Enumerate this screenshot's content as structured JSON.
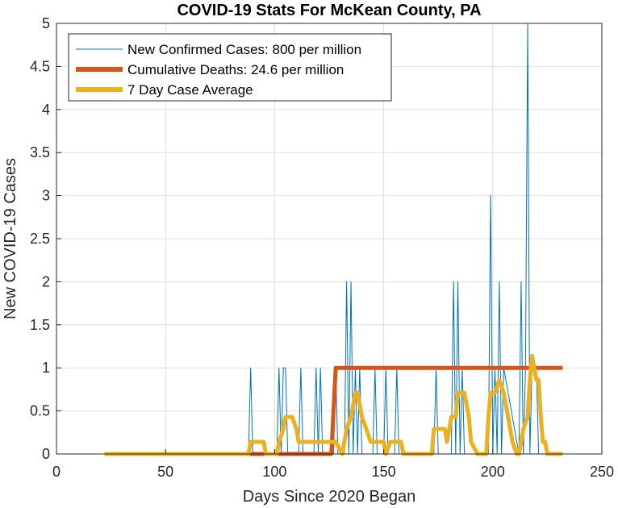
{
  "chart_data": {
    "type": "line",
    "title": "COVID-19 Stats For McKean County, PA",
    "xlabel": "Days Since 2020 Began",
    "ylabel": "New COVID-19 Cases",
    "xlim": [
      0,
      250
    ],
    "ylim": [
      0,
      5
    ],
    "xticks": [
      0,
      50,
      100,
      150,
      200,
      250
    ],
    "yticks": [
      0,
      0.5,
      1,
      1.5,
      2,
      2.5,
      3,
      3.5,
      4,
      4.5,
      5
    ],
    "xtick_labels": [
      "0",
      "50",
      "100",
      "150",
      "200",
      "250"
    ],
    "ytick_labels": [
      "0",
      "0.5",
      "1",
      "1.5",
      "2",
      "2.5",
      "3",
      "3.5",
      "4",
      "4.5",
      "5"
    ],
    "grid": true,
    "legend_position": "top-left",
    "series": [
      {
        "name": "New Confirmed Cases: 800 per million",
        "color": "#0072BD",
        "x": [
          22,
          88,
          89,
          90,
          101,
          102,
          103,
          104,
          105,
          106,
          111,
          112,
          113,
          118,
          119,
          120,
          121,
          122,
          127,
          128,
          129,
          132,
          133,
          134,
          135,
          136,
          137,
          138,
          139,
          140,
          145,
          146,
          147,
          150,
          151,
          152,
          155,
          156,
          157,
          173,
          174,
          175,
          181,
          182,
          183,
          184,
          185,
          186,
          187,
          198,
          199,
          200,
          201,
          202,
          203,
          204,
          205,
          212,
          213,
          214,
          215,
          216,
          217,
          218,
          219,
          220,
          221,
          232
        ],
        "y": [
          0,
          0,
          1,
          0,
          0,
          1,
          0,
          1,
          1,
          0,
          0,
          1,
          0,
          0,
          1,
          0,
          1,
          0,
          0,
          1,
          0,
          0,
          2,
          0,
          2,
          0,
          1,
          0,
          1,
          0,
          0,
          1,
          0,
          0,
          1,
          0,
          0,
          1,
          0,
          0,
          1,
          0,
          0,
          2,
          0,
          2,
          0,
          1,
          0,
          0,
          3,
          0,
          1,
          0,
          2,
          0,
          1,
          0,
          2,
          0,
          1,
          5,
          0,
          1,
          1,
          1,
          0,
          0
        ]
      },
      {
        "name": "Cumulative Deaths: 24.6 per million",
        "color": "#D95319",
        "x": [
          22,
          126,
          128,
          232
        ],
        "y": [
          0,
          0,
          1,
          1
        ]
      },
      {
        "name": "7 Day Case Average",
        "color": "#EDB120",
        "x": [
          22,
          88,
          89,
          95,
          96,
          101,
          102,
          104,
          105,
          108,
          110,
          111,
          117,
          118,
          120,
          121,
          125,
          127,
          128,
          131,
          133,
          135,
          136,
          137,
          138,
          139,
          140,
          142,
          144,
          145,
          150,
          151,
          153,
          154,
          157,
          158,
          159,
          161,
          162,
          172,
          173,
          178,
          179,
          181,
          183,
          184,
          186,
          187,
          189,
          190,
          193,
          196,
          197,
          198,
          199,
          201,
          203,
          205,
          206,
          208,
          209,
          211,
          212,
          214,
          216,
          217,
          218,
          219,
          220,
          221,
          222,
          223,
          224,
          225,
          226,
          227,
          232
        ],
        "y": [
          0,
          0,
          0.14,
          0.14,
          0,
          0,
          0.14,
          0.29,
          0.43,
          0.43,
          0.29,
          0.14,
          0.14,
          0.14,
          0.14,
          0.14,
          0.14,
          0.14,
          0.14,
          0,
          0.29,
          0.43,
          0.57,
          0.71,
          0.71,
          0.57,
          0.43,
          0.29,
          0.14,
          0.14,
          0.14,
          0,
          0.14,
          0.14,
          0.14,
          0.14,
          0,
          0,
          0,
          0,
          0.29,
          0.29,
          0.14,
          0.43,
          0.43,
          0.71,
          0.71,
          0.71,
          0.43,
          0.14,
          0,
          0,
          0,
          0.43,
          0.71,
          0.71,
          0.86,
          0.71,
          0.57,
          0.29,
          0.14,
          0,
          0,
          0.29,
          0.43,
          0.86,
          1.14,
          1.0,
          0.86,
          0.86,
          0.43,
          0.14,
          0.14,
          0,
          0,
          0,
          0
        ]
      }
    ]
  }
}
